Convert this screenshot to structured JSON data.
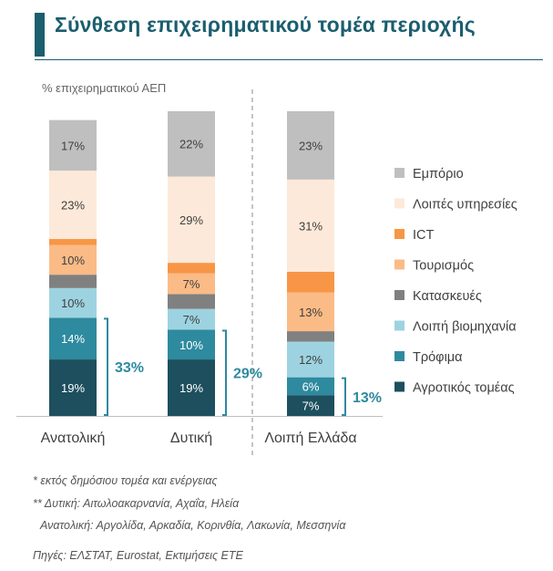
{
  "title": "Σύνθεση επιχειρηματικού τομέα περιοχής",
  "notes": [
    "* εκτός δημόσιου τομέα και ενέργειας",
    "** Δυτική: Αιτωλοακαρνανία, Αχαΐα, Ηλεία",
    "Ανατολική: Αργολίδα, Αρκαδία, Κορινθία, Λακωνία, Μεσσηνία"
  ],
  "source": "Πηγές: ΕΛΣΤΑΤ, Eurostat, Εκτιμήσεις ΕΤΕ",
  "chart_data": {
    "type": "bar",
    "stacked": true,
    "ylabel": "% επιχειρηματικού ΑΕΠ",
    "categories": [
      "Ανατολική",
      "Δυτική",
      "Λοιπή Ελλάδα"
    ],
    "legend_position": "right",
    "series": [
      {
        "name": "Αγροτικός τομέας",
        "color": "#1d4f5e",
        "values": [
          19,
          19,
          7
        ],
        "labels": [
          "19%",
          "19%",
          "7%"
        ]
      },
      {
        "name": "Τρόφιμα",
        "color": "#2e8a9e",
        "values": [
          14,
          10,
          6
        ],
        "labels": [
          "14%",
          "10%",
          "6%"
        ]
      },
      {
        "name": "Λοιπή βιομηχανία",
        "color": "#9dd3e0",
        "values": [
          10,
          7,
          12
        ],
        "labels": [
          "10%",
          "7%",
          "12%"
        ]
      },
      {
        "name": "Κατασκευές",
        "color": "#808080",
        "values": [
          4.5,
          5,
          3.5
        ],
        "labels": [
          "",
          "",
          ""
        ]
      },
      {
        "name": "Τουρισμός",
        "color": "#fbbb86",
        "values": [
          10,
          7,
          13
        ],
        "labels": [
          "10%",
          "7%",
          "13%"
        ]
      },
      {
        "name": "ICT",
        "color": "#f79646",
        "values": [
          2,
          3.5,
          7
        ],
        "labels": [
          "",
          "",
          ""
        ]
      },
      {
        "name": "Λοιπές υπηρεσίες",
        "color": "#fde9d9",
        "values": [
          23,
          29,
          31
        ],
        "labels": [
          "23%",
          "29%",
          "31%"
        ]
      },
      {
        "name": "Εμπόριο",
        "color": "#bfbfbf",
        "values": [
          17,
          22,
          23
        ],
        "labels": [
          "17%",
          "22%",
          "23%"
        ]
      }
    ],
    "group_brackets": [
      {
        "category": "Ανατολική",
        "series": [
          "Αγροτικός τομέας",
          "Τρόφιμα"
        ],
        "label": "33%"
      },
      {
        "category": "Δυτική",
        "series": [
          "Αγροτικός τομέας",
          "Τρόφιμα"
        ],
        "label": "29%"
      },
      {
        "category": "Λοιπή Ελλάδα",
        "series": [
          "Αγροτικός τομέας",
          "Τρόφιμα"
        ],
        "label": "13%"
      }
    ],
    "bracket_color": "#2e8a9e",
    "separator": "dashed vertical line between Δυτική and Λοιπή Ελλάδα"
  }
}
